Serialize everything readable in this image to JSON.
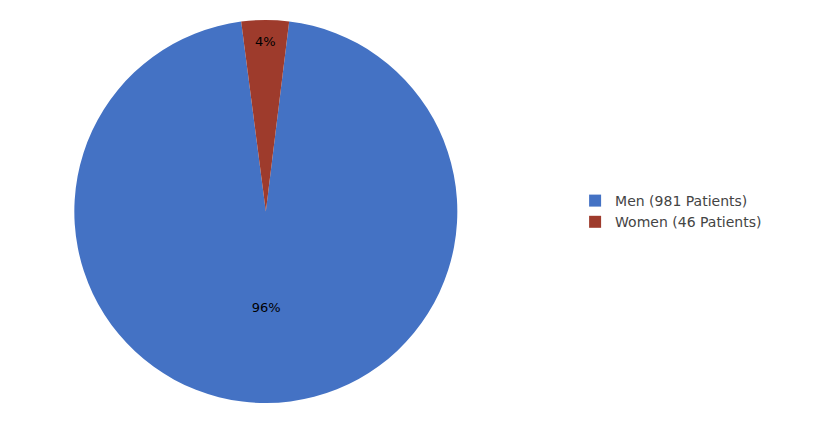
{
  "chart_data": {
    "type": "pie",
    "categories": [
      "Men (981 Patients)",
      "Women (46 Patients)"
    ],
    "values": [
      96,
      4
    ],
    "value_labels": [
      "96%",
      "4%"
    ],
    "colors": [
      "#4472C4",
      "#9E3B2C"
    ],
    "data_labels": true,
    "legend": "right"
  }
}
